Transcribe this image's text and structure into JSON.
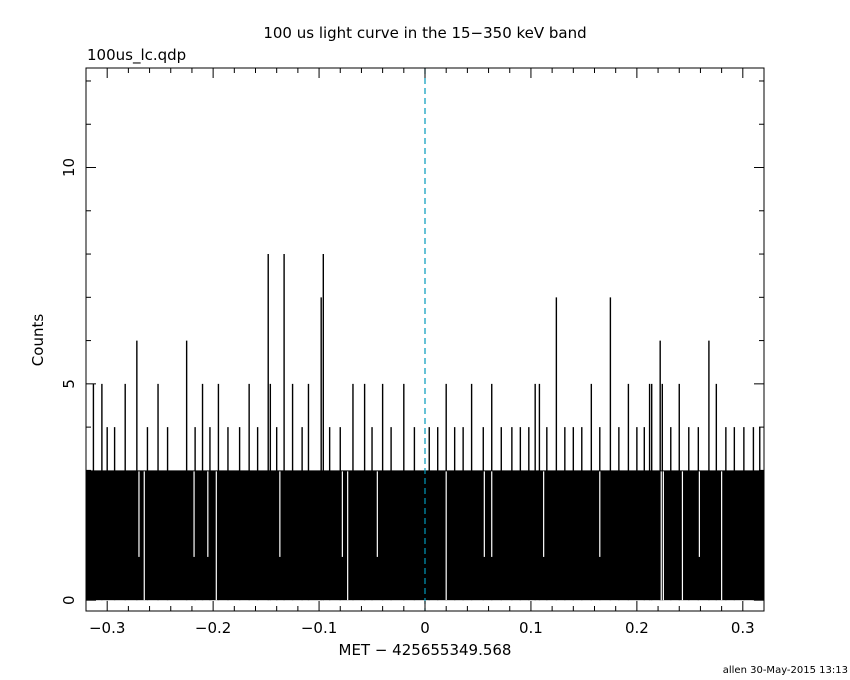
{
  "file_label": "100us_lc.qdp",
  "footer": "allen 30-May-2015 13:13",
  "chart_data": {
    "type": "bar",
    "title": "100 us light curve in the 15−350 keV band",
    "xlabel": "MET − 425655349.568",
    "ylabel": "Counts",
    "xlim": [
      -0.32,
      0.32
    ],
    "ylim": [
      -0.25,
      12.3
    ],
    "bin_width": 0.0001,
    "x_ticks": [
      -0.3,
      -0.2,
      -0.1,
      0,
      0.1,
      0.2,
      0.3
    ],
    "x_tick_labels": [
      "−0.3",
      "−0.2",
      "−0.1",
      "0",
      "0.1",
      "0.2",
      "0.3"
    ],
    "y_ticks": [
      0,
      5,
      10
    ],
    "y_tick_labels": [
      "0",
      "5",
      "10"
    ],
    "marker_x": 0,
    "marker_color": "#0099bb",
    "bar_color": "#000000",
    "baseline": 3,
    "peaks": [
      {
        "x": -0.313,
        "y": 5
      },
      {
        "x": -0.305,
        "y": 5
      },
      {
        "x": -0.3,
        "y": 4
      },
      {
        "x": -0.293,
        "y": 4
      },
      {
        "x": -0.283,
        "y": 5
      },
      {
        "x": -0.272,
        "y": 6
      },
      {
        "x": -0.262,
        "y": 4
      },
      {
        "x": -0.252,
        "y": 5
      },
      {
        "x": -0.243,
        "y": 4
      },
      {
        "x": -0.225,
        "y": 6
      },
      {
        "x": -0.217,
        "y": 4
      },
      {
        "x": -0.21,
        "y": 5
      },
      {
        "x": -0.203,
        "y": 4
      },
      {
        "x": -0.195,
        "y": 5
      },
      {
        "x": -0.186,
        "y": 4
      },
      {
        "x": -0.175,
        "y": 4
      },
      {
        "x": -0.166,
        "y": 5
      },
      {
        "x": -0.158,
        "y": 4
      },
      {
        "x": -0.148,
        "y": 8
      },
      {
        "x": -0.146,
        "y": 5
      },
      {
        "x": -0.14,
        "y": 4
      },
      {
        "x": -0.133,
        "y": 8
      },
      {
        "x": -0.125,
        "y": 5
      },
      {
        "x": -0.116,
        "y": 4
      },
      {
        "x": -0.11,
        "y": 5
      },
      {
        "x": -0.098,
        "y": 7
      },
      {
        "x": -0.096,
        "y": 8
      },
      {
        "x": -0.09,
        "y": 4
      },
      {
        "x": -0.08,
        "y": 4
      },
      {
        "x": -0.068,
        "y": 5
      },
      {
        "x": -0.057,
        "y": 5
      },
      {
        "x": -0.05,
        "y": 4
      },
      {
        "x": -0.04,
        "y": 5
      },
      {
        "x": -0.032,
        "y": 4
      },
      {
        "x": -0.02,
        "y": 5
      },
      {
        "x": -0.01,
        "y": 4
      },
      {
        "x": 0.004,
        "y": 4
      },
      {
        "x": 0.012,
        "y": 4
      },
      {
        "x": 0.02,
        "y": 5
      },
      {
        "x": 0.028,
        "y": 4
      },
      {
        "x": 0.036,
        "y": 4
      },
      {
        "x": 0.044,
        "y": 5
      },
      {
        "x": 0.055,
        "y": 4
      },
      {
        "x": 0.063,
        "y": 5
      },
      {
        "x": 0.072,
        "y": 4
      },
      {
        "x": 0.082,
        "y": 4
      },
      {
        "x": 0.09,
        "y": 4
      },
      {
        "x": 0.098,
        "y": 4
      },
      {
        "x": 0.104,
        "y": 5
      },
      {
        "x": 0.108,
        "y": 5
      },
      {
        "x": 0.115,
        "y": 4
      },
      {
        "x": 0.124,
        "y": 7
      },
      {
        "x": 0.132,
        "y": 4
      },
      {
        "x": 0.14,
        "y": 4
      },
      {
        "x": 0.148,
        "y": 4
      },
      {
        "x": 0.157,
        "y": 5
      },
      {
        "x": 0.165,
        "y": 4
      },
      {
        "x": 0.175,
        "y": 7
      },
      {
        "x": 0.183,
        "y": 4
      },
      {
        "x": 0.192,
        "y": 5
      },
      {
        "x": 0.2,
        "y": 4
      },
      {
        "x": 0.207,
        "y": 4
      },
      {
        "x": 0.212,
        "y": 5
      },
      {
        "x": 0.214,
        "y": 5
      },
      {
        "x": 0.222,
        "y": 6
      },
      {
        "x": 0.224,
        "y": 5
      },
      {
        "x": 0.232,
        "y": 4
      },
      {
        "x": 0.24,
        "y": 5
      },
      {
        "x": 0.249,
        "y": 4
      },
      {
        "x": 0.258,
        "y": 4
      },
      {
        "x": 0.268,
        "y": 6
      },
      {
        "x": 0.275,
        "y": 5
      },
      {
        "x": 0.284,
        "y": 4
      },
      {
        "x": 0.292,
        "y": 4
      },
      {
        "x": 0.301,
        "y": 4
      },
      {
        "x": 0.31,
        "y": 4
      },
      {
        "x": 0.316,
        "y": 4
      }
    ],
    "gaps": [
      {
        "x": -0.265,
        "y": 0
      },
      {
        "x": -0.27,
        "y": 1
      },
      {
        "x": -0.197,
        "y": 0
      },
      {
        "x": -0.218,
        "y": 1
      },
      {
        "x": -0.205,
        "y": 1
      },
      {
        "x": -0.137,
        "y": 1
      },
      {
        "x": -0.073,
        "y": 0
      },
      {
        "x": -0.078,
        "y": 1
      },
      {
        "x": -0.045,
        "y": 1
      },
      {
        "x": 0.02,
        "y": 0
      },
      {
        "x": 0.056,
        "y": 1
      },
      {
        "x": 0.063,
        "y": 1
      },
      {
        "x": 0.112,
        "y": 1
      },
      {
        "x": 0.165,
        "y": 1
      },
      {
        "x": 0.225,
        "y": 0
      },
      {
        "x": 0.223,
        "y": 0
      },
      {
        "x": 0.243,
        "y": 0
      },
      {
        "x": 0.259,
        "y": 1
      },
      {
        "x": 0.28,
        "y": 0
      }
    ]
  }
}
